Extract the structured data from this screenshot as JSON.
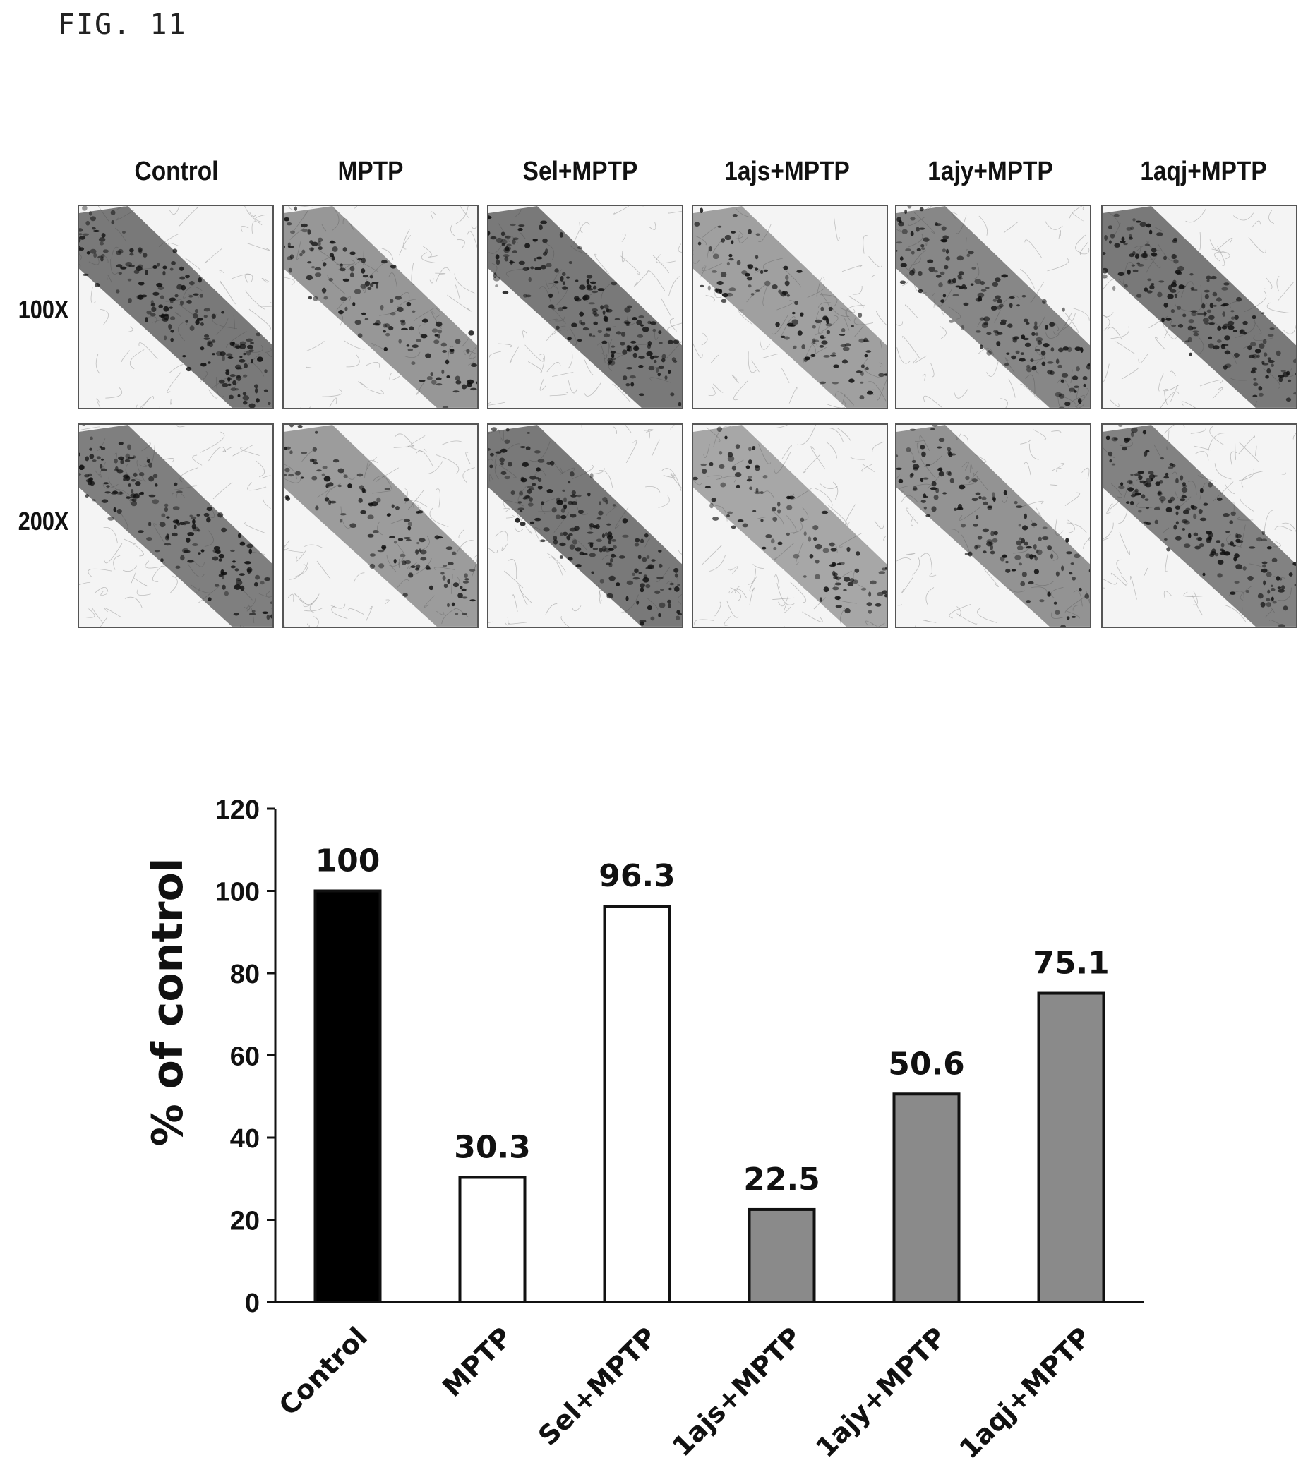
{
  "figure_label": "FIG. 11",
  "micrograph_panel": {
    "columns": [
      "Control",
      "MPTP",
      "Sel+MPTP",
      "1ajs+MPTP",
      "1ajy+MPTP",
      "1aqj+MPTP"
    ],
    "rows": [
      "100X",
      "200X"
    ],
    "image_description": "tissue micrographs"
  },
  "chart_data": {
    "type": "bar",
    "categories": [
      "Control",
      "MPTP",
      "Sel+MPTP",
      "1ajs+MPTP",
      "1ajy+MPTP",
      "1aqj+MPTP"
    ],
    "values": [
      100,
      30.3,
      96.3,
      22.5,
      50.6,
      75.1
    ],
    "value_labels": [
      "100",
      "30.3",
      "96.3",
      "22.5",
      "50.6",
      "75.1"
    ],
    "bar_colors": [
      "#000000",
      "#ffffff",
      "#ffffff",
      "#8a8a8a",
      "#8a8a8a",
      "#8a8a8a"
    ],
    "title": "",
    "xlabel": "",
    "ylabel": "% of control",
    "ylim": [
      0,
      120
    ],
    "yticks": [
      0,
      20,
      40,
      60,
      80,
      100,
      120
    ],
    "grid": false,
    "legend": "none"
  }
}
